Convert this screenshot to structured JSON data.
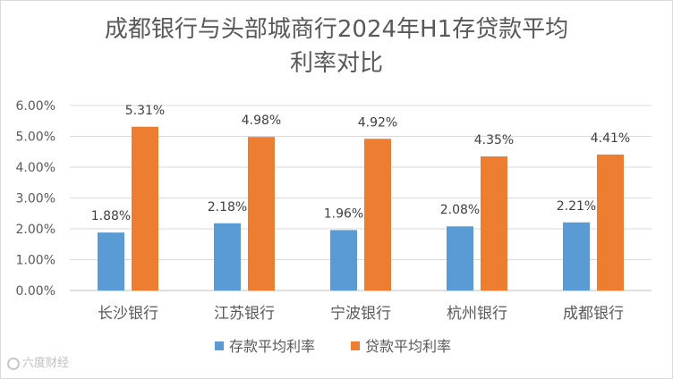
{
  "chart_data": {
    "type": "bar",
    "title_line1": "成都银行与头部城商行2024年H1存贷款平均",
    "title_line2": "利率对比",
    "categories": [
      "长沙银行",
      "江苏银行",
      "宁波银行",
      "杭州银行",
      "成都银行"
    ],
    "series": [
      {
        "name": "存款平均利率",
        "color": "#5b9bd5",
        "values": [
          1.88,
          2.18,
          1.96,
          2.08,
          2.21
        ],
        "labels": [
          "1.88%",
          "2.18%",
          "1.96%",
          "2.08%",
          "2.21%"
        ]
      },
      {
        "name": "贷款平均利率",
        "color": "#ed7d31",
        "values": [
          5.31,
          4.98,
          4.92,
          4.35,
          4.41
        ],
        "labels": [
          "5.31%",
          "4.98%",
          "4.92%",
          "4.35%",
          "4.41%"
        ]
      }
    ],
    "ylim": [
      0,
      6
    ],
    "yticks": [
      "0.00%",
      "1.00%",
      "2.00%",
      "3.00%",
      "4.00%",
      "5.00%",
      "6.00%"
    ],
    "grid": true,
    "legend": "bottom"
  },
  "watermark": {
    "text": "六度财经"
  }
}
